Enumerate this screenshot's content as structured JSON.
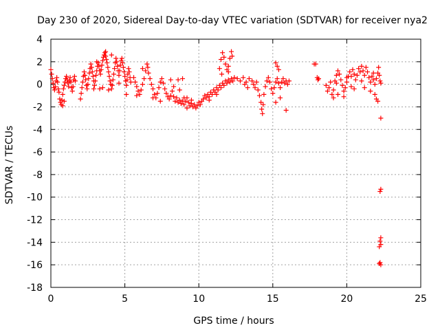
{
  "chart_data": {
    "type": "scatter",
    "title": "Day 230 of 2020, Sidereal Day-to-day VTEC variation (SDTVAR) for receiver nya2",
    "xlabel": "GPS time / hours",
    "ylabel": "SDTVAR / TECUs",
    "xlim": [
      0,
      25
    ],
    "ylim": [
      -18,
      4
    ],
    "xticks": [
      0,
      5,
      10,
      15,
      20,
      25
    ],
    "xtick_labels": [
      "0",
      "5",
      "10",
      "15",
      "20",
      "25"
    ],
    "yticks": [
      4,
      2,
      0,
      -2,
      -4,
      -6,
      -8,
      -10,
      -12,
      -14,
      -16,
      -18
    ],
    "ytick_labels": [
      "4",
      "2",
      "0",
      "-2",
      "-4",
      "-6",
      "-8",
      "-10",
      "-12",
      "-14",
      "-16",
      "-18"
    ],
    "grid": true,
    "marker": "+",
    "color": "#ff0000",
    "series": [
      {
        "name": "SDTVAR",
        "points": [
          [
            0.0,
            1.3
          ],
          [
            0.05,
            0.9
          ],
          [
            0.1,
            0.5
          ],
          [
            0.15,
            0.1
          ],
          [
            0.2,
            -0.3
          ],
          [
            0.25,
            -0.5
          ],
          [
            0.3,
            -0.2
          ],
          [
            0.35,
            0.3
          ],
          [
            0.4,
            0.6
          ],
          [
            0.45,
            0.2
          ],
          [
            0.5,
            -0.4
          ],
          [
            0.55,
            -0.7
          ],
          [
            0.6,
            -1.3
          ],
          [
            0.65,
            -1.6
          ],
          [
            0.7,
            -1.8
          ],
          [
            0.75,
            -1.4
          ],
          [
            0.8,
            -0.9
          ],
          [
            0.85,
            -0.4
          ],
          [
            0.9,
            -0.1
          ],
          [
            0.95,
            0.2
          ],
          [
            1.0,
            0.5
          ],
          [
            1.05,
            0.7
          ],
          [
            1.1,
            0.4
          ],
          [
            1.15,
            0.1
          ],
          [
            1.2,
            -0.2
          ],
          [
            1.25,
            0.3
          ],
          [
            1.3,
            0.6
          ],
          [
            1.35,
            0.2
          ],
          [
            1.4,
            -0.3
          ],
          [
            1.45,
            -0.6
          ],
          [
            1.5,
            -0.2
          ],
          [
            1.55,
            0.4
          ],
          [
            1.6,
            0.7
          ],
          [
            1.65,
            0.3
          ],
          [
            0.8,
            -1.9
          ],
          [
            0.9,
            -1.5
          ],
          [
            2.0,
            -1.3
          ],
          [
            2.05,
            -0.8
          ],
          [
            2.1,
            -0.3
          ],
          [
            2.15,
            0.2
          ],
          [
            2.2,
            0.7
          ],
          [
            2.25,
            1.1
          ],
          [
            2.3,
            0.8
          ],
          [
            2.35,
            0.4
          ],
          [
            2.4,
            -0.1
          ],
          [
            2.45,
            -0.4
          ],
          [
            2.5,
            0.0
          ],
          [
            2.55,
            0.5
          ],
          [
            2.6,
            1.0
          ],
          [
            2.65,
            1.4
          ],
          [
            2.7,
            1.8
          ],
          [
            2.75,
            1.5
          ],
          [
            2.8,
            1.1
          ],
          [
            2.85,
            0.7
          ],
          [
            2.9,
            0.3
          ],
          [
            2.95,
            -0.1
          ],
          [
            3.0,
            0.3
          ],
          [
            3.05,
            0.8
          ],
          [
            3.1,
            1.2
          ],
          [
            3.15,
            1.6
          ],
          [
            3.2,
            1.9
          ],
          [
            3.25,
            1.6
          ],
          [
            3.3,
            1.2
          ],
          [
            3.35,
            0.9
          ],
          [
            3.4,
            1.3
          ],
          [
            3.45,
            1.7
          ],
          [
            3.5,
            2.1
          ],
          [
            3.55,
            2.4
          ],
          [
            3.6,
            2.6
          ],
          [
            3.65,
            2.8
          ],
          [
            3.7,
            2.5
          ],
          [
            3.75,
            2.2
          ],
          [
            3.8,
            1.9
          ],
          [
            3.85,
            1.5
          ],
          [
            3.9,
            1.1
          ],
          [
            3.95,
            0.7
          ],
          [
            4.0,
            0.3
          ],
          [
            4.05,
            0.0
          ],
          [
            4.1,
            -0.4
          ],
          [
            4.15,
            -0.1
          ],
          [
            4.2,
            0.4
          ],
          [
            4.25,
            0.9
          ],
          [
            4.3,
            1.4
          ],
          [
            4.35,
            1.9
          ],
          [
            4.4,
            2.3
          ],
          [
            4.45,
            2.0
          ],
          [
            4.5,
            1.6
          ],
          [
            4.55,
            1.2
          ],
          [
            4.6,
            0.8
          ],
          [
            4.65,
            1.2
          ],
          [
            4.7,
            1.7
          ],
          [
            4.75,
            2.1
          ],
          [
            4.8,
            2.3
          ],
          [
            4.85,
            1.9
          ],
          [
            4.9,
            1.5
          ],
          [
            4.95,
            1.1
          ],
          [
            5.0,
            0.7
          ],
          [
            5.05,
            0.3
          ],
          [
            5.1,
            -0.1
          ],
          [
            5.15,
            0.4
          ],
          [
            5.2,
            0.9
          ],
          [
            5.25,
            1.4
          ],
          [
            5.3,
            1.1
          ],
          [
            5.35,
            0.6
          ],
          [
            5.4,
            0.2
          ],
          [
            3.3,
            -0.4
          ],
          [
            3.5,
            -0.3
          ],
          [
            3.9,
            -0.5
          ],
          [
            4.1,
            2.6
          ],
          [
            3.7,
            2.9
          ],
          [
            2.9,
            -0.4
          ],
          [
            5.1,
            -0.9
          ],
          [
            4.6,
            0.1
          ],
          [
            3.1,
            2.0
          ],
          [
            5.6,
            0.6
          ],
          [
            5.7,
            0.2
          ],
          [
            5.8,
            -0.2
          ],
          [
            5.9,
            -0.6
          ],
          [
            6.0,
            -0.9
          ],
          [
            6.1,
            -0.5
          ],
          [
            6.2,
            0.0
          ],
          [
            6.3,
            0.5
          ],
          [
            6.4,
            1.2
          ],
          [
            6.5,
            1.8
          ],
          [
            6.55,
            1.5
          ],
          [
            6.6,
            1.0
          ],
          [
            6.7,
            0.5
          ],
          [
            6.8,
            0.0
          ],
          [
            6.9,
            -0.4
          ],
          [
            7.0,
            -0.9
          ],
          [
            7.1,
            -1.2
          ],
          [
            7.2,
            -0.8
          ],
          [
            7.3,
            -0.3
          ],
          [
            7.4,
            0.2
          ],
          [
            7.5,
            0.5
          ],
          [
            7.6,
            0.1
          ],
          [
            7.7,
            -0.4
          ],
          [
            7.8,
            -0.8
          ],
          [
            7.9,
            -1.1
          ],
          [
            8.0,
            -1.3
          ],
          [
            8.1,
            -1.0
          ],
          [
            8.2,
            -0.6
          ],
          [
            8.3,
            -1.1
          ],
          [
            8.4,
            -1.5
          ],
          [
            8.5,
            -1.2
          ],
          [
            8.6,
            -1.6
          ],
          [
            8.7,
            -1.4
          ],
          [
            8.8,
            -1.7
          ],
          [
            8.9,
            -1.5
          ],
          [
            9.0,
            -1.8
          ],
          [
            9.1,
            -1.5
          ],
          [
            9.2,
            -1.2
          ],
          [
            9.3,
            -1.6
          ],
          [
            9.4,
            -1.9
          ],
          [
            9.5,
            -1.7
          ],
          [
            9.6,
            -2.0
          ],
          [
            9.7,
            -1.8
          ],
          [
            9.8,
            -2.1
          ],
          [
            9.9,
            -1.9
          ],
          [
            10.0,
            -1.6
          ],
          [
            10.1,
            -1.8
          ],
          [
            10.2,
            -1.5
          ],
          [
            5.8,
            -1.0
          ],
          [
            6.9,
            -1.2
          ],
          [
            7.4,
            -1.5
          ],
          [
            8.1,
            0.4
          ],
          [
            8.3,
            -0.2
          ],
          [
            8.7,
            -0.5
          ],
          [
            9.0,
            -1.2
          ],
          [
            9.2,
            -2.1
          ],
          [
            9.5,
            -1.4
          ],
          [
            8.9,
            0.5
          ],
          [
            8.6,
            0.4
          ],
          [
            6.2,
            1.4
          ],
          [
            10.3,
            -1.3
          ],
          [
            10.4,
            -1.0
          ],
          [
            10.5,
            -1.2
          ],
          [
            10.6,
            -0.9
          ],
          [
            10.7,
            -1.1
          ],
          [
            10.8,
            -0.7
          ],
          [
            10.9,
            -0.9
          ],
          [
            11.0,
            -0.5
          ],
          [
            11.1,
            -0.7
          ],
          [
            11.2,
            -0.3
          ],
          [
            11.3,
            -0.5
          ],
          [
            11.4,
            -0.1
          ],
          [
            11.5,
            -0.3
          ],
          [
            11.6,
            0.1
          ],
          [
            11.7,
            -0.1
          ],
          [
            11.8,
            0.3
          ],
          [
            11.9,
            0.1
          ],
          [
            12.0,
            0.4
          ],
          [
            12.1,
            0.2
          ],
          [
            12.2,
            0.5
          ],
          [
            12.3,
            0.3
          ],
          [
            12.4,
            0.6
          ],
          [
            10.7,
            -1.4
          ],
          [
            11.2,
            -0.9
          ],
          [
            11.5,
            2.2
          ],
          [
            11.6,
            2.8
          ],
          [
            11.7,
            2.4
          ],
          [
            11.8,
            1.8
          ],
          [
            11.9,
            1.3
          ],
          [
            12.0,
            1.6
          ],
          [
            12.1,
            2.3
          ],
          [
            12.2,
            2.9
          ],
          [
            12.25,
            2.5
          ],
          [
            11.4,
            1.4
          ],
          [
            11.55,
            0.9
          ],
          [
            12.0,
            1.1
          ],
          [
            12.6,
            0.5
          ],
          [
            12.8,
            0.3
          ],
          [
            13.0,
            0.6
          ],
          [
            13.2,
            0.2
          ],
          [
            13.4,
            0.5
          ],
          [
            13.6,
            0.3
          ],
          [
            13.7,
            0.0
          ],
          [
            13.8,
            -0.3
          ],
          [
            13.9,
            0.2
          ],
          [
            14.0,
            -0.5
          ],
          [
            14.1,
            -1.0
          ],
          [
            14.2,
            -1.6
          ],
          [
            14.25,
            -2.2
          ],
          [
            14.3,
            -2.6
          ],
          [
            14.35,
            -1.8
          ],
          [
            14.4,
            -0.9
          ],
          [
            14.5,
            -0.2
          ],
          [
            14.6,
            0.3
          ],
          [
            14.7,
            0.6
          ],
          [
            14.8,
            0.2
          ],
          [
            14.9,
            -0.4
          ],
          [
            15.0,
            -0.8
          ],
          [
            15.1,
            -0.3
          ],
          [
            15.2,
            0.2
          ],
          [
            15.3,
            0.5
          ],
          [
            15.4,
            0.1
          ],
          [
            15.5,
            -0.3
          ],
          [
            15.6,
            0.2
          ],
          [
            15.7,
            0.5
          ],
          [
            15.8,
            0.1
          ],
          [
            15.9,
            0.3
          ],
          [
            16.0,
            0.0
          ],
          [
            16.1,
            0.3
          ],
          [
            15.2,
            1.9
          ],
          [
            15.3,
            1.6
          ],
          [
            15.4,
            1.3
          ],
          [
            15.2,
            -1.6
          ],
          [
            15.5,
            -1.2
          ],
          [
            15.9,
            -2.3
          ],
          [
            13.3,
            -0.3
          ],
          [
            13.1,
            0.0
          ],
          [
            17.8,
            1.8
          ],
          [
            17.9,
            1.8
          ],
          [
            18.0,
            0.6
          ],
          [
            18.05,
            0.4
          ],
          [
            18.1,
            0.5
          ],
          [
            18.6,
            -0.1
          ],
          [
            18.7,
            -0.6
          ],
          [
            18.8,
            -0.3
          ],
          [
            18.9,
            0.2
          ],
          [
            19.0,
            -0.9
          ],
          [
            19.1,
            -0.5
          ],
          [
            19.2,
            0.3
          ],
          [
            19.3,
            0.8
          ],
          [
            19.4,
            1.2
          ],
          [
            19.5,
            0.9
          ],
          [
            19.6,
            0.4
          ],
          [
            19.7,
            -0.1
          ],
          [
            19.8,
            -0.6
          ],
          [
            19.9,
            -0.3
          ],
          [
            20.0,
            0.2
          ],
          [
            20.1,
            0.7
          ],
          [
            20.2,
            1.1
          ],
          [
            20.3,
            0.7
          ],
          [
            20.4,
            1.3
          ],
          [
            20.5,
            0.9
          ],
          [
            20.6,
            0.4
          ],
          [
            20.7,
            0.8
          ],
          [
            20.8,
            1.4
          ],
          [
            20.9,
            1.1
          ],
          [
            21.0,
            1.6
          ],
          [
            21.1,
            1.2
          ],
          [
            21.2,
            0.8
          ],
          [
            21.3,
            1.5
          ],
          [
            21.4,
            1.1
          ],
          [
            21.5,
            0.6
          ],
          [
            21.6,
            0.2
          ],
          [
            21.7,
            0.7
          ],
          [
            21.8,
            0.4
          ],
          [
            21.9,
            0.0
          ],
          [
            22.0,
            0.5
          ],
          [
            22.1,
            1.0
          ],
          [
            22.15,
            1.5
          ],
          [
            22.2,
            0.8
          ],
          [
            22.25,
            0.3
          ],
          [
            22.3,
            0.1
          ],
          [
            19.1,
            -1.2
          ],
          [
            19.4,
            -0.9
          ],
          [
            19.8,
            -1.1
          ],
          [
            20.5,
            -0.4
          ],
          [
            21.2,
            -0.3
          ],
          [
            21.6,
            -0.6
          ],
          [
            21.9,
            -0.9
          ],
          [
            22.0,
            -1.3
          ],
          [
            22.1,
            -1.5
          ],
          [
            19.3,
            0.1
          ],
          [
            20.0,
            0.6
          ],
          [
            20.3,
            -0.2
          ],
          [
            21.0,
            0.3
          ],
          [
            21.8,
            1.0
          ],
          [
            22.3,
            -3.0
          ],
          [
            22.3,
            -9.3
          ],
          [
            22.25,
            -9.5
          ],
          [
            22.3,
            -13.6
          ],
          [
            22.25,
            -13.9
          ],
          [
            22.3,
            -14.2
          ],
          [
            22.2,
            -14.4
          ],
          [
            22.25,
            -15.8
          ],
          [
            22.3,
            -16.0
          ],
          [
            22.2,
            -15.9
          ]
        ]
      }
    ]
  }
}
